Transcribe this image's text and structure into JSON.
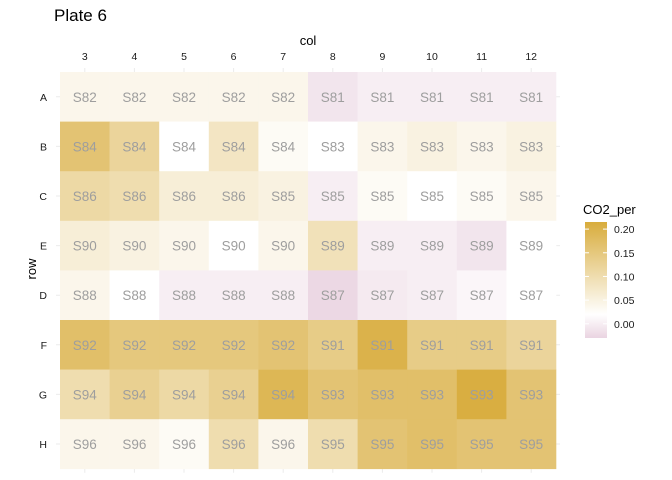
{
  "chart_data": {
    "type": "heatmap",
    "title": "Plate 6",
    "xlabel": "col",
    "ylabel": "row",
    "columns": [
      "3",
      "4",
      "5",
      "6",
      "7",
      "8",
      "9",
      "10",
      "11",
      "12"
    ],
    "rows": [
      "A",
      "B",
      "C",
      "E",
      "D",
      "F",
      "G",
      "H"
    ],
    "labels": [
      [
        "S82",
        "S82",
        "S82",
        "S82",
        "S82",
        "S81",
        "S81",
        "S81",
        "S81",
        "S81"
      ],
      [
        "S84",
        "S84",
        "S84",
        "S84",
        "S84",
        "S83",
        "S83",
        "S83",
        "S83",
        "S83"
      ],
      [
        "S86",
        "S86",
        "S86",
        "S86",
        "S85",
        "S85",
        "S85",
        "S85",
        "S85",
        "S85"
      ],
      [
        "S90",
        "S90",
        "S90",
        "S90",
        "S90",
        "S89",
        "S89",
        "S89",
        "S89",
        "S89"
      ],
      [
        "S88",
        "S88",
        "S88",
        "S88",
        "S88",
        "S87",
        "S87",
        "S87",
        "S87",
        "S87"
      ],
      [
        "S92",
        "S92",
        "S92",
        "S92",
        "S92",
        "S91",
        "S91",
        "S91",
        "S91",
        "S91"
      ],
      [
        "S94",
        "S94",
        "S94",
        "S94",
        "S94",
        "S93",
        "S93",
        "S93",
        "S93",
        "S93"
      ],
      [
        "S96",
        "S96",
        "S96",
        "S96",
        "S96",
        "S95",
        "S95",
        "S95",
        "S95",
        "S95"
      ]
    ],
    "values": [
      [
        0.04,
        0.04,
        0.04,
        0.04,
        0.04,
        -0.01,
        0.0,
        0.0,
        0.0,
        0.0
      ],
      [
        0.16,
        0.12,
        0.02,
        0.08,
        0.03,
        0.02,
        0.04,
        0.05,
        0.04,
        0.05
      ],
      [
        0.11,
        0.1,
        0.06,
        0.06,
        0.05,
        0.0,
        0.03,
        0.02,
        0.03,
        0.04
      ],
      [
        0.06,
        0.05,
        0.04,
        0.02,
        0.04,
        0.09,
        0.0,
        0.0,
        -0.01,
        0.02
      ],
      [
        0.04,
        0.02,
        0.0,
        0.0,
        0.0,
        -0.025,
        -0.005,
        0.0,
        0.01,
        0.02
      ],
      [
        0.17,
        0.15,
        0.15,
        0.15,
        0.16,
        0.14,
        0.2,
        0.14,
        0.14,
        0.12
      ],
      [
        0.1,
        0.13,
        0.11,
        0.13,
        0.19,
        0.16,
        0.17,
        0.17,
        0.21,
        0.16
      ],
      [
        0.04,
        0.04,
        0.03,
        0.1,
        0.04,
        0.1,
        0.16,
        0.17,
        0.16,
        0.16
      ]
    ],
    "colorbar": {
      "title": "CO2_per",
      "ticks": [
        "0.00",
        "0.05",
        "0.10",
        "0.15",
        "0.20"
      ],
      "tick_values": [
        0.0,
        0.05,
        0.1,
        0.15,
        0.2
      ],
      "range": [
        -0.03,
        0.215
      ],
      "low_color": "#ead4e1",
      "mid_color": "#ffffff",
      "high_color": "#d8ac3c",
      "midpoint": 0.02
    },
    "grid": true,
    "legend_position": "right"
  }
}
